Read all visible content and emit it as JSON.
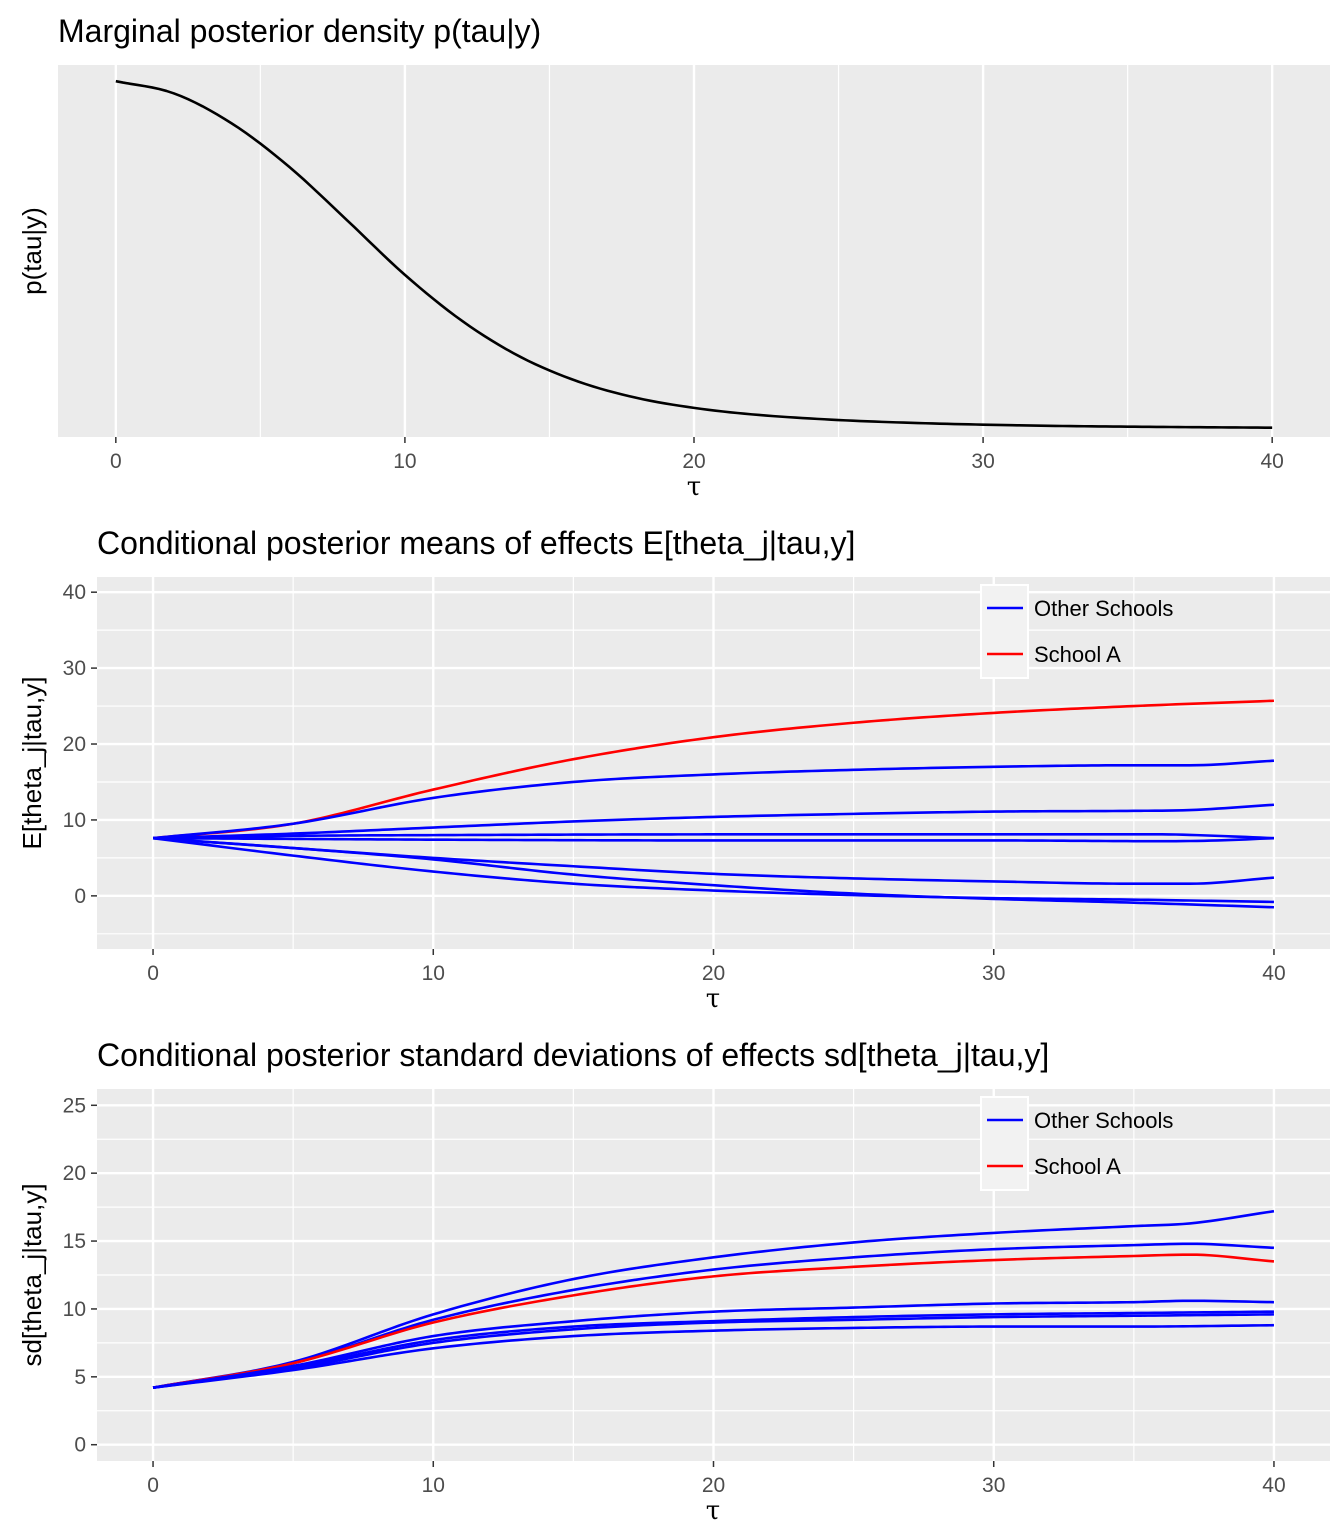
{
  "chart_data": [
    {
      "type": "line",
      "title": "Marginal posterior density p(tau|y)",
      "xlabel": "τ",
      "ylabel": "p(tau|y)",
      "xlim": [
        -2,
        42
      ],
      "ylim": [
        -0.02,
        0.9
      ],
      "x_ticks": [
        0,
        10,
        20,
        30,
        40
      ],
      "y_ticks": [],
      "grid": true,
      "legend": "none",
      "series": [
        {
          "color": "#000000",
          "x": [
            0,
            2,
            4,
            6,
            8,
            10,
            12,
            14,
            16,
            18,
            20,
            22,
            25,
            28,
            32,
            36,
            40
          ],
          "values": [
            0.86,
            0.83,
            0.756,
            0.648,
            0.516,
            0.381,
            0.266,
            0.178,
            0.117,
            0.077,
            0.052,
            0.036,
            0.022,
            0.014,
            0.008,
            0.005,
            0.003
          ]
        }
      ]
    },
    {
      "type": "line",
      "title": "Conditional posterior means of effects E[theta_j|tau,y]",
      "xlabel": "τ",
      "ylabel": "E[theta_j|tau,y]",
      "xlim": [
        -2,
        42
      ],
      "ylim": [
        -7,
        42
      ],
      "x_ticks": [
        0,
        10,
        20,
        30,
        40
      ],
      "y_ticks": [
        0,
        10,
        20,
        30,
        40
      ],
      "grid": true,
      "legend": "top-right",
      "legend_entries": [
        {
          "label": "Other Schools",
          "color": "#0000ff"
        },
        {
          "label": "School A",
          "color": "#ff0000"
        }
      ],
      "series": [
        {
          "group": "School A",
          "color": "#ff0000",
          "x": [
            0,
            5,
            10,
            15,
            20,
            25,
            30,
            35,
            40
          ],
          "values": [
            7.6,
            9.5,
            14.0,
            18.0,
            20.9,
            22.8,
            24.1,
            25.0,
            25.7
          ]
        },
        {
          "group": "Other Schools",
          "color": "#0000ff",
          "x": [
            0,
            5,
            10,
            15,
            20,
            25,
            30,
            35,
            37,
            40
          ],
          "values": [
            7.6,
            9.5,
            12.9,
            15.0,
            16.0,
            16.6,
            17.0,
            17.2,
            17.2,
            17.8
          ]
        },
        {
          "group": "Other Schools",
          "color": "#0000ff",
          "x": [
            0,
            5,
            10,
            15,
            20,
            25,
            30,
            35,
            37,
            40
          ],
          "values": [
            7.6,
            8.2,
            9.0,
            9.8,
            10.4,
            10.8,
            11.1,
            11.2,
            11.3,
            12.0
          ]
        },
        {
          "group": "Other Schools",
          "color": "#0000ff",
          "x": [
            0,
            5,
            10,
            20,
            30,
            36,
            38,
            40
          ],
          "values": [
            7.6,
            7.9,
            8.0,
            8.1,
            8.1,
            8.1,
            7.9,
            7.6
          ]
        },
        {
          "group": "Other Schools",
          "color": "#0000ff",
          "x": [
            0,
            5,
            10,
            20,
            30,
            36,
            38,
            40
          ],
          "values": [
            7.6,
            7.5,
            7.4,
            7.3,
            7.3,
            7.2,
            7.3,
            7.6
          ]
        },
        {
          "group": "Other Schools",
          "color": "#0000ff",
          "x": [
            0,
            5,
            10,
            15,
            20,
            25,
            30,
            35,
            37,
            40
          ],
          "values": [
            7.6,
            6.3,
            5.0,
            3.9,
            2.9,
            2.3,
            1.9,
            1.6,
            1.6,
            2.4
          ]
        },
        {
          "group": "Other Schools",
          "color": "#0000ff",
          "x": [
            0,
            5,
            10,
            15,
            20,
            25,
            30,
            35,
            40
          ],
          "values": [
            7.6,
            6.3,
            4.8,
            2.8,
            1.4,
            0.3,
            -0.4,
            -0.9,
            -1.5
          ]
        },
        {
          "group": "Other Schools",
          "color": "#0000ff",
          "x": [
            0,
            5,
            10,
            15,
            20,
            25,
            30,
            35,
            40
          ],
          "values": [
            7.6,
            5.3,
            3.2,
            1.6,
            0.7,
            0.1,
            -0.3,
            -0.5,
            -0.8
          ]
        }
      ]
    },
    {
      "type": "line",
      "title": "Conditional posterior standard deviations of effects sd[theta_j|tau,y]",
      "xlabel": "τ",
      "ylabel": "sd[theta_j|tau,y]",
      "xlim": [
        -2,
        42
      ],
      "ylim": [
        -1.2,
        26.2
      ],
      "x_ticks": [
        0,
        10,
        20,
        30,
        40
      ],
      "y_ticks": [
        0,
        5,
        10,
        15,
        20,
        25
      ],
      "grid": true,
      "legend": "top-right",
      "legend_entries": [
        {
          "label": "Other Schools",
          "color": "#0000ff"
        },
        {
          "label": "School A",
          "color": "#ff0000"
        }
      ],
      "series": [
        {
          "group": "Other Schools",
          "color": "#0000ff",
          "x": [
            0,
            5,
            10,
            15,
            20,
            25,
            30,
            35,
            37,
            40
          ],
          "values": [
            4.2,
            6.1,
            9.6,
            12.2,
            13.8,
            14.9,
            15.6,
            16.1,
            16.3,
            17.2
          ]
        },
        {
          "group": "Other Schools",
          "color": "#0000ff",
          "x": [
            0,
            5,
            10,
            15,
            20,
            25,
            30,
            35,
            37,
            40
          ],
          "values": [
            4.2,
            6.0,
            9.2,
            11.4,
            12.9,
            13.8,
            14.4,
            14.7,
            14.8,
            14.5
          ]
        },
        {
          "group": "School A",
          "color": "#ff0000",
          "x": [
            0,
            5,
            10,
            15,
            20,
            25,
            30,
            35,
            37,
            40
          ],
          "values": [
            4.2,
            6.0,
            9.0,
            11.0,
            12.4,
            13.1,
            13.6,
            13.9,
            14.0,
            13.5
          ]
        },
        {
          "group": "Other Schools",
          "color": "#0000ff",
          "x": [
            0,
            5,
            10,
            15,
            20,
            25,
            30,
            35,
            37,
            40
          ],
          "values": [
            4.2,
            5.8,
            8.0,
            9.1,
            9.8,
            10.1,
            10.4,
            10.5,
            10.6,
            10.5
          ]
        },
        {
          "group": "Other Schools",
          "color": "#0000ff",
          "x": [
            0,
            5,
            10,
            15,
            20,
            25,
            30,
            35,
            40
          ],
          "values": [
            4.2,
            5.7,
            7.7,
            8.7,
            9.1,
            9.4,
            9.6,
            9.7,
            9.8
          ]
        },
        {
          "group": "Other Schools",
          "color": "#0000ff",
          "x": [
            0,
            5,
            10,
            15,
            20,
            25,
            30,
            35,
            40
          ],
          "values": [
            4.2,
            5.6,
            7.5,
            8.5,
            9.0,
            9.2,
            9.4,
            9.5,
            9.6
          ]
        },
        {
          "group": "Other Schools",
          "color": "#0000ff",
          "x": [
            0,
            5,
            10,
            15,
            20,
            25,
            30,
            35,
            40
          ],
          "values": [
            4.2,
            5.5,
            7.1,
            8.0,
            8.4,
            8.6,
            8.7,
            8.7,
            8.8
          ]
        }
      ]
    }
  ]
}
